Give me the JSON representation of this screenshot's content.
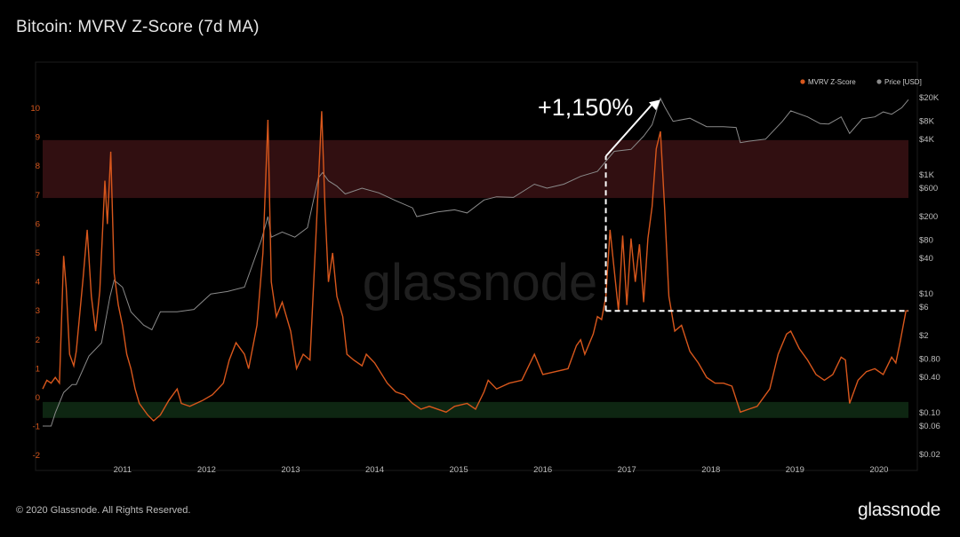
{
  "title": "Bitcoin: MVRV Z-Score (7d MA)",
  "footer": "© 2020 Glassnode. All Rights Reserved.",
  "brand": "glassnode",
  "watermark": "glassnode",
  "colors": {
    "z_score": "#d8571c",
    "price": "#8a8a8a",
    "red_band": "#3a1214",
    "green_band": "#0f2a14",
    "background": "#000000"
  },
  "chart_data": {
    "type": "line",
    "title": "Bitcoin: MVRV Z-Score (7d MA)",
    "legend": {
      "position": "top-right",
      "entries": [
        "MVRV Z-Score",
        "Price [USD]"
      ]
    },
    "x_ticks": [
      "2011",
      "2012",
      "2013",
      "2014",
      "2015",
      "2016",
      "2017",
      "2018",
      "2019",
      "2020"
    ],
    "x_range": [
      2010.6,
      2020.9
    ],
    "left_axis": {
      "label": "",
      "range": [
        -2,
        10.5
      ],
      "ticks": [
        "-2",
        "-1",
        "0",
        "1",
        "2",
        "3",
        "4",
        "5",
        "6",
        "7",
        "8",
        "9",
        "10"
      ]
    },
    "right_axis": {
      "label": "",
      "scale": "log",
      "ticks": [
        "$0.02",
        "$0.06",
        "$0.10",
        "$0.40",
        "$0.80",
        "$2",
        "$6",
        "$10",
        "$40",
        "$80",
        "$200",
        "$600",
        "$1K",
        "$4K",
        "$8K",
        "$20K"
      ]
    },
    "bands": [
      {
        "name": "red",
        "y_range": [
          6.9,
          8.9
        ]
      },
      {
        "name": "green",
        "y_range": [
          -0.7,
          -0.15
        ]
      }
    ],
    "annotation": {
      "text": "+1,150%",
      "from": {
        "date": 2017.3,
        "z": 3
      },
      "to": {
        "date": 2017.95,
        "z": 10.3
      },
      "end_date": 2020.9
    },
    "series": [
      {
        "name": "MVRV Z-Score",
        "axis": "left",
        "points": [
          [
            2010.6,
            0.3
          ],
          [
            2010.65,
            0.6
          ],
          [
            2010.7,
            0.5
          ],
          [
            2010.75,
            0.7
          ],
          [
            2010.8,
            0.5
          ],
          [
            2010.85,
            4.9
          ],
          [
            2010.88,
            3.8
          ],
          [
            2010.92,
            1.5
          ],
          [
            2010.97,
            1.1
          ],
          [
            2011.0,
            1.6
          ],
          [
            2011.08,
            4.1
          ],
          [
            2011.13,
            5.8
          ],
          [
            2011.18,
            3.5
          ],
          [
            2011.23,
            2.3
          ],
          [
            2011.28,
            3.7
          ],
          [
            2011.34,
            7.5
          ],
          [
            2011.37,
            6.0
          ],
          [
            2011.41,
            8.5
          ],
          [
            2011.45,
            4.3
          ],
          [
            2011.5,
            3.2
          ],
          [
            2011.55,
            2.5
          ],
          [
            2011.6,
            1.5
          ],
          [
            2011.65,
            1.0
          ],
          [
            2011.7,
            0.3
          ],
          [
            2011.75,
            -0.2
          ],
          [
            2011.85,
            -0.6
          ],
          [
            2011.92,
            -0.8
          ],
          [
            2012.0,
            -0.6
          ],
          [
            2012.1,
            -0.1
          ],
          [
            2012.2,
            0.3
          ],
          [
            2012.25,
            -0.2
          ],
          [
            2012.35,
            -0.3
          ],
          [
            2012.5,
            -0.1
          ],
          [
            2012.62,
            0.1
          ],
          [
            2012.75,
            0.5
          ],
          [
            2012.82,
            1.3
          ],
          [
            2012.9,
            1.9
          ],
          [
            2013.0,
            1.5
          ],
          [
            2013.05,
            1.0
          ],
          [
            2013.15,
            2.5
          ],
          [
            2013.22,
            5.0
          ],
          [
            2013.28,
            9.6
          ],
          [
            2013.32,
            4.0
          ],
          [
            2013.38,
            2.8
          ],
          [
            2013.45,
            3.3
          ],
          [
            2013.55,
            2.3
          ],
          [
            2013.62,
            1.0
          ],
          [
            2013.7,
            1.5
          ],
          [
            2013.78,
            1.3
          ],
          [
            2013.85,
            5.5
          ],
          [
            2013.92,
            9.9
          ],
          [
            2013.96,
            6.5
          ],
          [
            2014.0,
            4.0
          ],
          [
            2014.05,
            5.0
          ],
          [
            2014.1,
            3.5
          ],
          [
            2014.17,
            2.8
          ],
          [
            2014.22,
            1.5
          ],
          [
            2014.3,
            1.3
          ],
          [
            2014.4,
            1.1
          ],
          [
            2014.45,
            1.5
          ],
          [
            2014.55,
            1.2
          ],
          [
            2014.7,
            0.5
          ],
          [
            2014.8,
            0.2
          ],
          [
            2014.9,
            0.1
          ],
          [
            2015.0,
            -0.2
          ],
          [
            2015.1,
            -0.4
          ],
          [
            2015.2,
            -0.3
          ],
          [
            2015.4,
            -0.5
          ],
          [
            2015.5,
            -0.3
          ],
          [
            2015.65,
            -0.2
          ],
          [
            2015.75,
            -0.4
          ],
          [
            2015.85,
            0.2
          ],
          [
            2015.9,
            0.6
          ],
          [
            2016.0,
            0.3
          ],
          [
            2016.15,
            0.5
          ],
          [
            2016.3,
            0.6
          ],
          [
            2016.45,
            1.5
          ],
          [
            2016.55,
            0.8
          ],
          [
            2016.7,
            0.9
          ],
          [
            2016.85,
            1.0
          ],
          [
            2016.95,
            1.8
          ],
          [
            2017.0,
            2.0
          ],
          [
            2017.05,
            1.5
          ],
          [
            2017.15,
            2.2
          ],
          [
            2017.2,
            2.8
          ],
          [
            2017.25,
            2.7
          ],
          [
            2017.3,
            3.5
          ],
          [
            2017.35,
            5.8
          ],
          [
            2017.45,
            3.0
          ],
          [
            2017.5,
            5.6
          ],
          [
            2017.55,
            3.2
          ],
          [
            2017.6,
            5.5
          ],
          [
            2017.65,
            4.0
          ],
          [
            2017.7,
            5.3
          ],
          [
            2017.75,
            3.3
          ],
          [
            2017.8,
            5.5
          ],
          [
            2017.85,
            6.6
          ],
          [
            2017.9,
            8.6
          ],
          [
            2017.95,
            9.2
          ],
          [
            2018.0,
            6.5
          ],
          [
            2018.05,
            3.5
          ],
          [
            2018.12,
            2.3
          ],
          [
            2018.2,
            2.5
          ],
          [
            2018.3,
            1.6
          ],
          [
            2018.4,
            1.2
          ],
          [
            2018.5,
            0.7
          ],
          [
            2018.6,
            0.5
          ],
          [
            2018.7,
            0.5
          ],
          [
            2018.8,
            0.4
          ],
          [
            2018.9,
            -0.5
          ],
          [
            2019.0,
            -0.4
          ],
          [
            2019.1,
            -0.3
          ],
          [
            2019.25,
            0.3
          ],
          [
            2019.35,
            1.5
          ],
          [
            2019.45,
            2.2
          ],
          [
            2019.5,
            2.3
          ],
          [
            2019.6,
            1.7
          ],
          [
            2019.7,
            1.3
          ],
          [
            2019.8,
            0.8
          ],
          [
            2019.9,
            0.6
          ],
          [
            2020.0,
            0.8
          ],
          [
            2020.1,
            1.4
          ],
          [
            2020.15,
            1.3
          ],
          [
            2020.2,
            -0.2
          ],
          [
            2020.3,
            0.6
          ],
          [
            2020.4,
            0.9
          ],
          [
            2020.5,
            1.0
          ],
          [
            2020.6,
            0.8
          ],
          [
            2020.7,
            1.4
          ],
          [
            2020.75,
            1.2
          ],
          [
            2020.8,
            1.9
          ],
          [
            2020.87,
            3.0
          ],
          [
            2020.9,
            3.0
          ]
        ]
      },
      {
        "name": "Price [USD]",
        "axis": "right",
        "unit": "USD",
        "points": [
          [
            2010.6,
            0.06
          ],
          [
            2010.7,
            0.06
          ],
          [
            2010.75,
            0.1
          ],
          [
            2010.85,
            0.22
          ],
          [
            2010.95,
            0.3
          ],
          [
            2011.0,
            0.3
          ],
          [
            2011.15,
            0.9
          ],
          [
            2011.3,
            1.5
          ],
          [
            2011.4,
            9
          ],
          [
            2011.45,
            17
          ],
          [
            2011.55,
            13
          ],
          [
            2011.65,
            5
          ],
          [
            2011.8,
            3
          ],
          [
            2011.9,
            2.5
          ],
          [
            2012.0,
            5
          ],
          [
            2012.2,
            5
          ],
          [
            2012.4,
            5.5
          ],
          [
            2012.6,
            10
          ],
          [
            2012.8,
            11
          ],
          [
            2013.0,
            13
          ],
          [
            2013.2,
            80
          ],
          [
            2013.28,
            200
          ],
          [
            2013.32,
            90
          ],
          [
            2013.45,
            110
          ],
          [
            2013.6,
            90
          ],
          [
            2013.75,
            130
          ],
          [
            2013.88,
            900
          ],
          [
            2013.93,
            1100
          ],
          [
            2014.0,
            800
          ],
          [
            2014.1,
            650
          ],
          [
            2014.2,
            480
          ],
          [
            2014.4,
            600
          ],
          [
            2014.6,
            500
          ],
          [
            2014.8,
            370
          ],
          [
            2015.0,
            280
          ],
          [
            2015.05,
            200
          ],
          [
            2015.3,
            240
          ],
          [
            2015.5,
            260
          ],
          [
            2015.65,
            230
          ],
          [
            2015.85,
            380
          ],
          [
            2016.0,
            430
          ],
          [
            2016.2,
            420
          ],
          [
            2016.45,
            700
          ],
          [
            2016.6,
            600
          ],
          [
            2016.8,
            700
          ],
          [
            2017.0,
            950
          ],
          [
            2017.2,
            1150
          ],
          [
            2017.4,
            2500
          ],
          [
            2017.6,
            2700
          ],
          [
            2017.75,
            4500
          ],
          [
            2017.85,
            7000
          ],
          [
            2017.95,
            19500
          ],
          [
            2018.0,
            14000
          ],
          [
            2018.1,
            8000
          ],
          [
            2018.3,
            9000
          ],
          [
            2018.5,
            6500
          ],
          [
            2018.7,
            6500
          ],
          [
            2018.85,
            6300
          ],
          [
            2018.9,
            3500
          ],
          [
            2019.0,
            3700
          ],
          [
            2019.2,
            4000
          ],
          [
            2019.4,
            8000
          ],
          [
            2019.5,
            12000
          ],
          [
            2019.7,
            9500
          ],
          [
            2019.85,
            7300
          ],
          [
            2019.95,
            7200
          ],
          [
            2020.1,
            9500
          ],
          [
            2020.2,
            5000
          ],
          [
            2020.35,
            8800
          ],
          [
            2020.5,
            9500
          ],
          [
            2020.6,
            11500
          ],
          [
            2020.7,
            10500
          ],
          [
            2020.82,
            13500
          ],
          [
            2020.9,
            18500
          ]
        ]
      }
    ]
  }
}
